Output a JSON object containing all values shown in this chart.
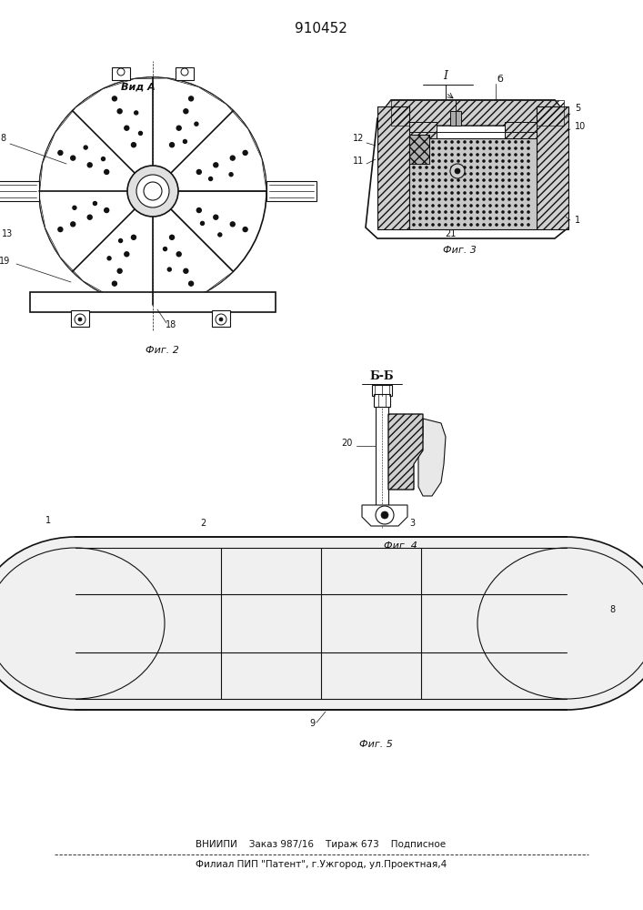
{
  "title": "910452",
  "footer_line1": "ВНИИПИ    Заказ 987/16    Тираж 673    Подписное",
  "footer_line2": "Филиал ПИП \"Патент\", г.Ужгород, ул.Проектная,4",
  "bg_color": "#ffffff",
  "fig_width": 7.07,
  "fig_height": 10.0,
  "dpi": 100
}
